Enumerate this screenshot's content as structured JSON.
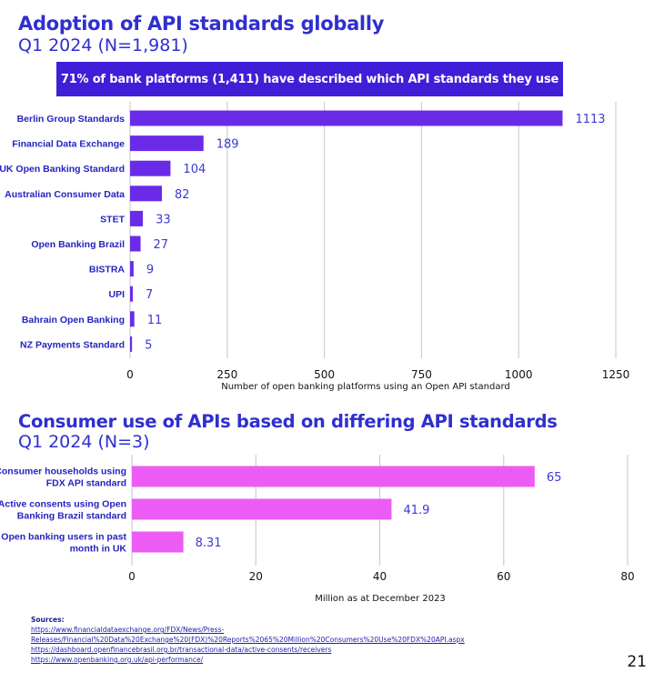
{
  "section1": {
    "title": "Adoption of API standards globally",
    "subtitle": "Q1 2024 (N=1,981)",
    "banner": "71% of bank platforms (1,411) have described which API standards they use"
  },
  "section2": {
    "title": "Consumer use of APIs based on differing API standards",
    "subtitle": "Q1 2024 (N=3)"
  },
  "chart_data": [
    {
      "type": "bar",
      "orientation": "horizontal",
      "categories": [
        "Berlin Group Standards",
        "Financial Data Exchange",
        "UK Open Banking Standard",
        "Australian Consumer Data",
        "STET",
        "Open Banking Brazil",
        "BISTRA",
        "UPI",
        "Bahrain Open Banking",
        "NZ Payments Standard"
      ],
      "values": [
        1113,
        189,
        104,
        82,
        33,
        27,
        9,
        7,
        11,
        5
      ],
      "value_labels": [
        "1113",
        "189",
        "104",
        "82",
        "33",
        "27",
        "9",
        "7",
        "11",
        "5"
      ],
      "xlabel": "Number of open banking platforms using an Open API standard",
      "xlim": [
        0,
        1250
      ],
      "ticks": [
        "0",
        "250",
        "500",
        "750",
        "1000",
        "1250"
      ],
      "tick_values": [
        0,
        250,
        500,
        750,
        1000,
        1250
      ],
      "grid": true,
      "color": "#6a2be8"
    },
    {
      "type": "bar",
      "orientation": "horizontal",
      "categories": [
        [
          "Consumer households using",
          "FDX API standard"
        ],
        [
          "Active consents using Open",
          "Banking Brazil standard"
        ],
        [
          "Open banking users in past",
          "month in UK"
        ]
      ],
      "values": [
        65,
        41.9,
        8.31
      ],
      "value_labels": [
        "65",
        "41.9",
        "8.31"
      ],
      "xlabel": "Million as at December 2023",
      "xlim": [
        0,
        80
      ],
      "ticks": [
        "0",
        "20",
        "40",
        "60",
        "80"
      ],
      "tick_values": [
        0,
        20,
        40,
        60,
        80
      ],
      "grid": true,
      "color": "#ec5cf5"
    }
  ],
  "sources": {
    "heading": "Sources:",
    "links": [
      "https://www.financialdataexchange.org/FDX/News/Press-Releases/Financial%20Data%20Exchange%20(FDX)%20Reports%2065%20Million%20Consumers%20Use%20FDX%20API.aspx",
      "https://dashboard.openfinancebrasil.org.br/transactional-data/active-consents/receivers",
      "https://www.openbanking.org.uk/api-performance/"
    ]
  },
  "page_number": "21"
}
